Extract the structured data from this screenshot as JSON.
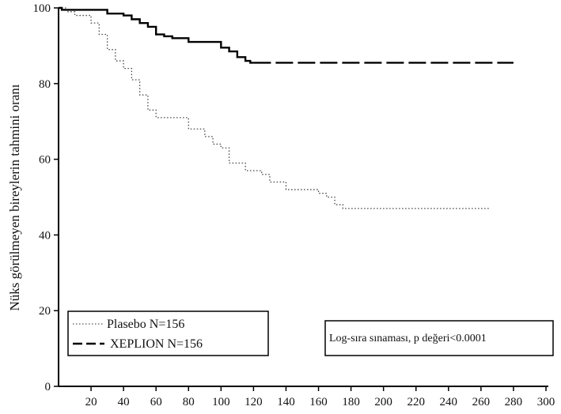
{
  "chart_data": {
    "type": "line",
    "xlabel": "",
    "ylabel": "Nüks görülmeyen bireylerin tahmini oranı",
    "xlim": [
      0,
      300
    ],
    "ylim": [
      0,
      100
    ],
    "xticks": [
      20,
      40,
      60,
      80,
      100,
      120,
      140,
      160,
      180,
      200,
      220,
      240,
      260,
      280,
      300
    ],
    "yticks": [
      0,
      20,
      40,
      60,
      80,
      100
    ],
    "grid": false,
    "legend_placement": "bottom-left",
    "legend": [
      {
        "label": "Plasebo N=156",
        "style": "dotted"
      },
      {
        "label": "XEPLION N=156",
        "style": "dashed"
      }
    ],
    "annotation": "Log-sıra sınaması, p değeri<0.0001",
    "series": [
      {
        "name": "Plasebo N=156",
        "style": "dotted",
        "x": [
          0,
          5,
          10,
          20,
          25,
          30,
          35,
          40,
          45,
          50,
          55,
          60,
          70,
          80,
          90,
          95,
          100,
          105,
          110,
          115,
          120,
          125,
          130,
          140,
          150,
          160,
          165,
          170,
          175,
          180,
          200,
          220,
          240,
          260,
          265
        ],
        "y": [
          100,
          99,
          98,
          96,
          93,
          89,
          86,
          84,
          81,
          77,
          73,
          71,
          71,
          68,
          66,
          64,
          63,
          59,
          59,
          57,
          57,
          56,
          54,
          52,
          52,
          51,
          50,
          48,
          47,
          47,
          47,
          47,
          47,
          47,
          47
        ]
      },
      {
        "name": "XEPLION N=156",
        "style": "dashed",
        "x": [
          0,
          2,
          10,
          20,
          30,
          40,
          45,
          50,
          55,
          60,
          65,
          70,
          80,
          90,
          100,
          105,
          110,
          115,
          118,
          120,
          140,
          160,
          180,
          200,
          220,
          240,
          260,
          280
        ],
        "y": [
          100,
          99.5,
          99.5,
          99.5,
          98.5,
          98,
          97,
          96,
          95,
          93,
          92.5,
          92,
          91,
          91,
          89.5,
          88.5,
          87,
          86,
          85.5,
          85.5,
          85.5,
          85.5,
          85.5,
          85.5,
          85.5,
          85.5,
          85.5,
          85.5
        ]
      }
    ]
  }
}
